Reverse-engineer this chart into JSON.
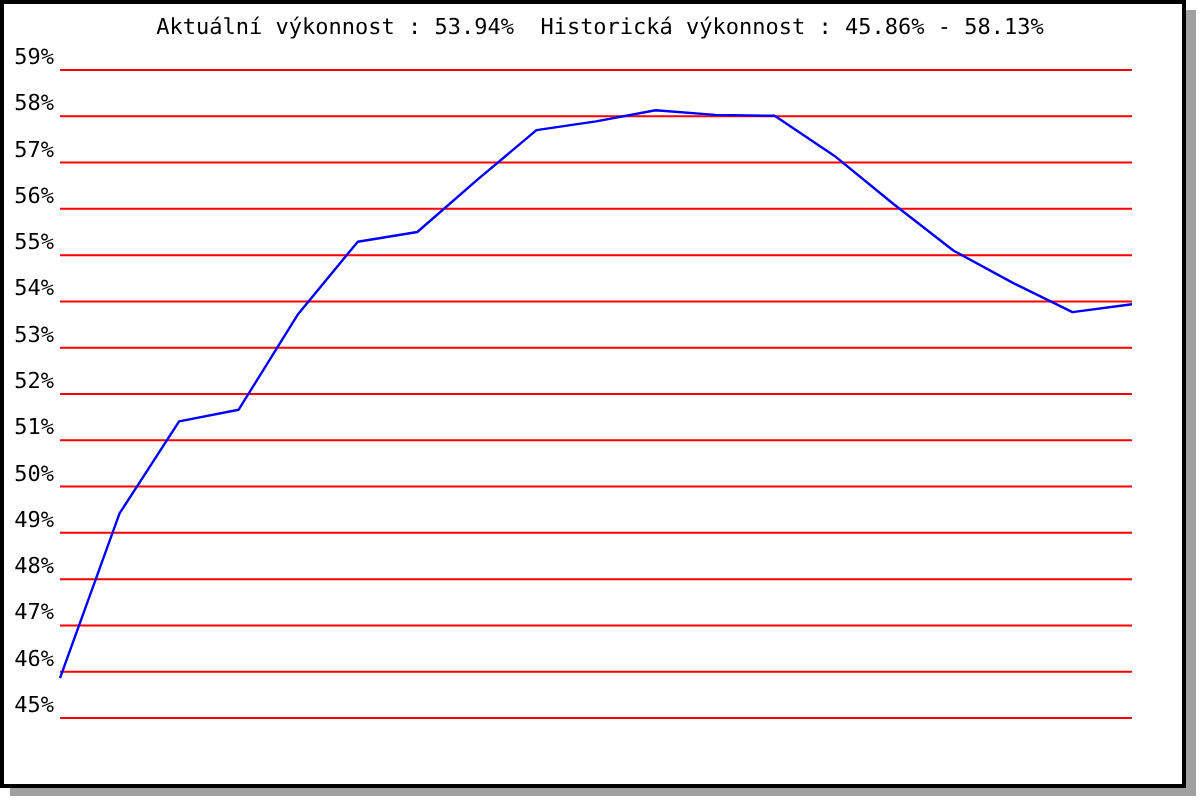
{
  "chart_data": {
    "type": "line",
    "title": "Aktuální výkonnost : 53.94%  Historická výkonnost : 45.86% - 58.13%",
    "categories": [
      null,
      null,
      null,
      null,
      null,
      null,
      null,
      null,
      null,
      null,
      null,
      null,
      null,
      null,
      null,
      null,
      null,
      null,
      null
    ],
    "series": [
      {
        "color": "#0000ff",
        "values": [
          45.86,
          49.42,
          51.41,
          51.66,
          53.73,
          55.29,
          55.5,
          56.62,
          57.7,
          57.89,
          58.13,
          58.03,
          58.01,
          57.15,
          56.1,
          55.1,
          54.4,
          53.77,
          53.94
        ]
      }
    ],
    "ylim": [
      45,
      59
    ],
    "yticks": [
      {
        "value": 45,
        "label": "45%"
      },
      {
        "value": 46,
        "label": "46%"
      },
      {
        "value": 47,
        "label": "47%"
      },
      {
        "value": 48,
        "label": "48%"
      },
      {
        "value": 49,
        "label": "49%"
      },
      {
        "value": 50,
        "label": "50%"
      },
      {
        "value": 51,
        "label": "51%"
      },
      {
        "value": 52,
        "label": "52%"
      },
      {
        "value": 53,
        "label": "53%"
      },
      {
        "value": 54,
        "label": "54%"
      },
      {
        "value": 55,
        "label": "55%"
      },
      {
        "value": 56,
        "label": "56%"
      },
      {
        "value": 57,
        "label": "57%"
      },
      {
        "value": 58,
        "label": "58%"
      },
      {
        "value": 59,
        "label": "59%"
      }
    ],
    "grid": "y",
    "tick_labels": "y"
  }
}
